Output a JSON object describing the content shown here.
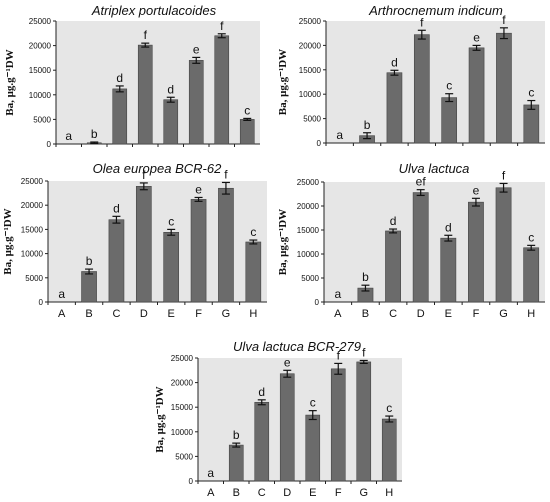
{
  "ylabel": "Ba, μg.g⁻¹DW",
  "chart_data": [
    {
      "type": "bar",
      "title": "Atriplex portulacoides",
      "categories": [
        "A",
        "B",
        "C",
        "D",
        "E",
        "F",
        "G",
        "H"
      ],
      "values": [
        0,
        250,
        11200,
        20100,
        9000,
        17000,
        22000,
        5000
      ],
      "errors": [
        0,
        150,
        600,
        400,
        500,
        600,
        400,
        200
      ],
      "significance": [
        "a",
        "b",
        "d",
        "f",
        "d",
        "e",
        "f",
        "c"
      ],
      "yticks": [
        0,
        5000,
        10000,
        15000,
        20000,
        25000
      ],
      "ylim": [
        0,
        25000
      ]
    },
    {
      "type": "bar",
      "title": "Arthrocnemum indicum",
      "categories": [
        "A",
        "B",
        "C",
        "D",
        "E",
        "F",
        "G",
        "H"
      ],
      "values": [
        0,
        1500,
        14400,
        22200,
        9300,
        19500,
        22500,
        7800
      ],
      "errors": [
        0,
        600,
        500,
        900,
        800,
        500,
        1100,
        900
      ],
      "significance": [
        "a",
        "b",
        "d",
        "f",
        "c",
        "e",
        "f",
        "c"
      ],
      "yticks": [
        0,
        5000,
        10000,
        15000,
        20000,
        25000
      ],
      "ylim": [
        0,
        25000
      ]
    },
    {
      "type": "bar",
      "title": "Olea europea BCR-62",
      "categories": [
        "A",
        "B",
        "C",
        "D",
        "E",
        "F",
        "G",
        "H"
      ],
      "values": [
        0,
        6300,
        17000,
        23900,
        14400,
        21200,
        23500,
        12400
      ],
      "errors": [
        0,
        500,
        700,
        700,
        600,
        400,
        1200,
        400
      ],
      "significance": [
        "a",
        "b",
        "d",
        "f",
        "c",
        "e",
        "f",
        "c"
      ],
      "yticks": [
        0,
        5000,
        10000,
        15000,
        20000,
        25000
      ],
      "ylim": [
        0,
        25000
      ]
    },
    {
      "type": "bar",
      "title": "Ulva lactuca",
      "categories": [
        "A",
        "B",
        "C",
        "D",
        "E",
        "F",
        "G",
        "H"
      ],
      "values": [
        0,
        2900,
        14800,
        22800,
        13300,
        20800,
        23800,
        11300
      ],
      "errors": [
        0,
        600,
        400,
        600,
        600,
        800,
        900,
        500
      ],
      "significance": [
        "a",
        "b",
        "d",
        "ef",
        "d",
        "e",
        "f",
        "c"
      ],
      "yticks": [
        0,
        5000,
        10000,
        15000,
        20000,
        25000
      ],
      "ylim": [
        0,
        25000
      ]
    },
    {
      "type": "bar",
      "title": "Ulva lactuca BCR-279",
      "categories": [
        "A",
        "B",
        "C",
        "D",
        "E",
        "F",
        "G",
        "H"
      ],
      "values": [
        0,
        7300,
        16000,
        21800,
        13400,
        22800,
        24200,
        12600
      ],
      "errors": [
        0,
        400,
        500,
        700,
        900,
        1100,
        300,
        600
      ],
      "significance": [
        "a",
        "b",
        "d",
        "e",
        "c",
        "f",
        "f",
        "c"
      ],
      "yticks": [
        0,
        5000,
        10000,
        15000,
        20000,
        25000
      ],
      "ylim": [
        0,
        25000
      ]
    }
  ]
}
